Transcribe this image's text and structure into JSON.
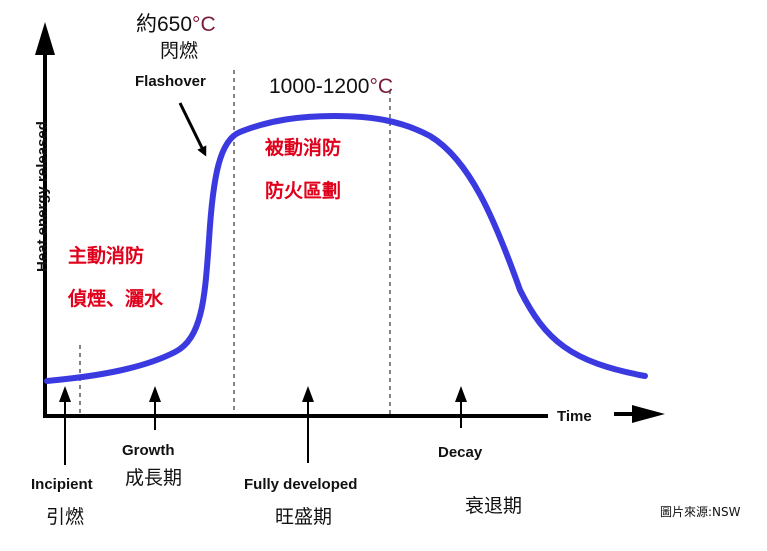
{
  "y_axis_label": "Heat energy released",
  "x_axis_label": "Time",
  "flashover": {
    "temp_prefix": "約650",
    "temp_unit": "°C",
    "zh": "閃燃",
    "en": "Flashover"
  },
  "peak_temp": {
    "value": "1000-1200",
    "unit": "°C"
  },
  "passive": {
    "line1": "被動消防",
    "line2": "防火區劃"
  },
  "active": {
    "line1": "主動消防",
    "line2": "偵煙、灑水"
  },
  "stages": [
    {
      "en": "Incipient",
      "zh": "引燃"
    },
    {
      "en": "Growth",
      "zh": "成長期"
    },
    {
      "en": "Fully developed",
      "zh": "旺盛期"
    },
    {
      "en": "Decay",
      "zh": "衰退期"
    }
  ],
  "source_credit": "圖片來源:NSW",
  "colors": {
    "curve": "#3a3ae0",
    "accent_red": "#e0001b",
    "unit_maroon": "#7a1a3a",
    "axis": "#000000"
  }
}
